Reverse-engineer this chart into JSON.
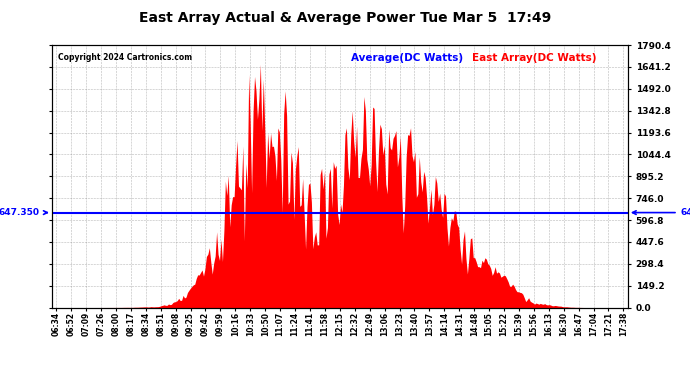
{
  "title": "East Array Actual & Average Power Tue Mar 5  17:49",
  "copyright": "Copyright 2024 Cartronics.com",
  "legend_average": "Average(DC Watts)",
  "legend_east": "East Array(DC Watts)",
  "average_value": 647.35,
  "ymax": 1790.4,
  "ymin": 0.0,
  "yticks": [
    0.0,
    149.2,
    298.4,
    447.6,
    596.8,
    746.0,
    895.2,
    1044.4,
    1193.6,
    1342.8,
    1492.0,
    1641.2,
    1790.4
  ],
  "background_color": "#ffffff",
  "fill_color": "#ff0000",
  "line_color": "#0000ff",
  "grid_color": "#888888",
  "title_color": "#000000",
  "xtick_labels": [
    "06:34",
    "06:52",
    "07:09",
    "07:26",
    "08:00",
    "08:17",
    "08:34",
    "08:51",
    "09:08",
    "09:25",
    "09:42",
    "09:59",
    "10:16",
    "10:33",
    "10:50",
    "11:07",
    "11:24",
    "11:41",
    "11:58",
    "12:15",
    "12:32",
    "12:49",
    "13:06",
    "13:23",
    "13:40",
    "13:57",
    "14:14",
    "14:31",
    "14:48",
    "15:05",
    "15:22",
    "15:39",
    "15:56",
    "16:13",
    "16:30",
    "16:47",
    "17:04",
    "17:21",
    "17:38"
  ]
}
